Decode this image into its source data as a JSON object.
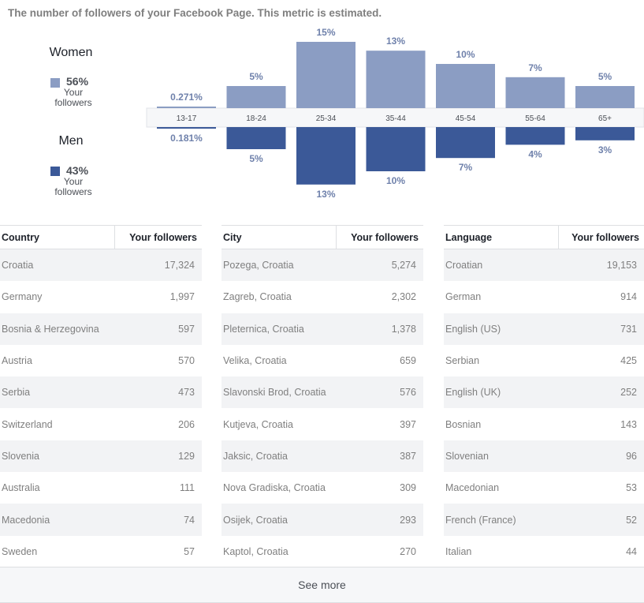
{
  "header": {
    "note": "The number of followers of your Facebook Page. This metric is estimated."
  },
  "legend": {
    "women": {
      "title": "Women",
      "pct": "56%",
      "sub_line1": "Your",
      "sub_line2": "followers",
      "color": "#8b9dc3"
    },
    "men": {
      "title": "Men",
      "pct": "43%",
      "sub_line1": "Your",
      "sub_line2": "followers",
      "color": "#3b5998"
    }
  },
  "chart_data": {
    "type": "bar",
    "categories": [
      "13-17",
      "18-24",
      "25-34",
      "35-44",
      "45-54",
      "55-64",
      "65+"
    ],
    "series": [
      {
        "name": "Women",
        "values": [
          0.271,
          5,
          15,
          13,
          10,
          7,
          5
        ],
        "labels": [
          "0.271%",
          "5%",
          "15%",
          "13%",
          "10%",
          "7%",
          "5%"
        ],
        "color": "#8b9dc3"
      },
      {
        "name": "Men",
        "values": [
          0.181,
          5,
          13,
          10,
          7,
          4,
          3
        ],
        "labels": [
          "0.181%",
          "5%",
          "13%",
          "10%",
          "7%",
          "4%",
          "3%"
        ],
        "color": "#3b5998"
      }
    ]
  },
  "tables": [
    {
      "header_label": "Country",
      "header_value": "Your followers",
      "rows": [
        {
          "name": "Croatia",
          "value": "17,324"
        },
        {
          "name": "Germany",
          "value": "1,997"
        },
        {
          "name": "Bosnia & Herzegovina",
          "value": "597"
        },
        {
          "name": "Austria",
          "value": "570"
        },
        {
          "name": "Serbia",
          "value": "473"
        },
        {
          "name": "Switzerland",
          "value": "206"
        },
        {
          "name": "Slovenia",
          "value": "129"
        },
        {
          "name": "Australia",
          "value": "111"
        },
        {
          "name": "Macedonia",
          "value": "74"
        },
        {
          "name": "Sweden",
          "value": "57"
        }
      ]
    },
    {
      "header_label": "City",
      "header_value": "Your followers",
      "rows": [
        {
          "name": "Pozega, Croatia",
          "value": "5,274"
        },
        {
          "name": "Zagreb, Croatia",
          "value": "2,302"
        },
        {
          "name": "Pleternica, Croatia",
          "value": "1,378"
        },
        {
          "name": "Velika, Croatia",
          "value": "659"
        },
        {
          "name": "Slavonski Brod, Croatia",
          "value": "576"
        },
        {
          "name": "Kutjeva, Croatia",
          "value": "397"
        },
        {
          "name": "Jaksic, Croatia",
          "value": "387"
        },
        {
          "name": "Nova Gradiska, Croatia",
          "value": "309"
        },
        {
          "name": "Osijek, Croatia",
          "value": "293"
        },
        {
          "name": "Kaptol, Croatia",
          "value": "270"
        }
      ]
    },
    {
      "header_label": "Language",
      "header_value": "Your followers",
      "rows": [
        {
          "name": "Croatian",
          "value": "19,153"
        },
        {
          "name": "German",
          "value": "914"
        },
        {
          "name": "English (US)",
          "value": "731"
        },
        {
          "name": "Serbian",
          "value": "425"
        },
        {
          "name": "English (UK)",
          "value": "252"
        },
        {
          "name": "Bosnian",
          "value": "143"
        },
        {
          "name": "Slovenian",
          "value": "96"
        },
        {
          "name": "Macedonian",
          "value": "53"
        },
        {
          "name": "French (France)",
          "value": "52"
        },
        {
          "name": "Italian",
          "value": "44"
        }
      ]
    }
  ],
  "footer": {
    "see_more_label": "See more"
  }
}
